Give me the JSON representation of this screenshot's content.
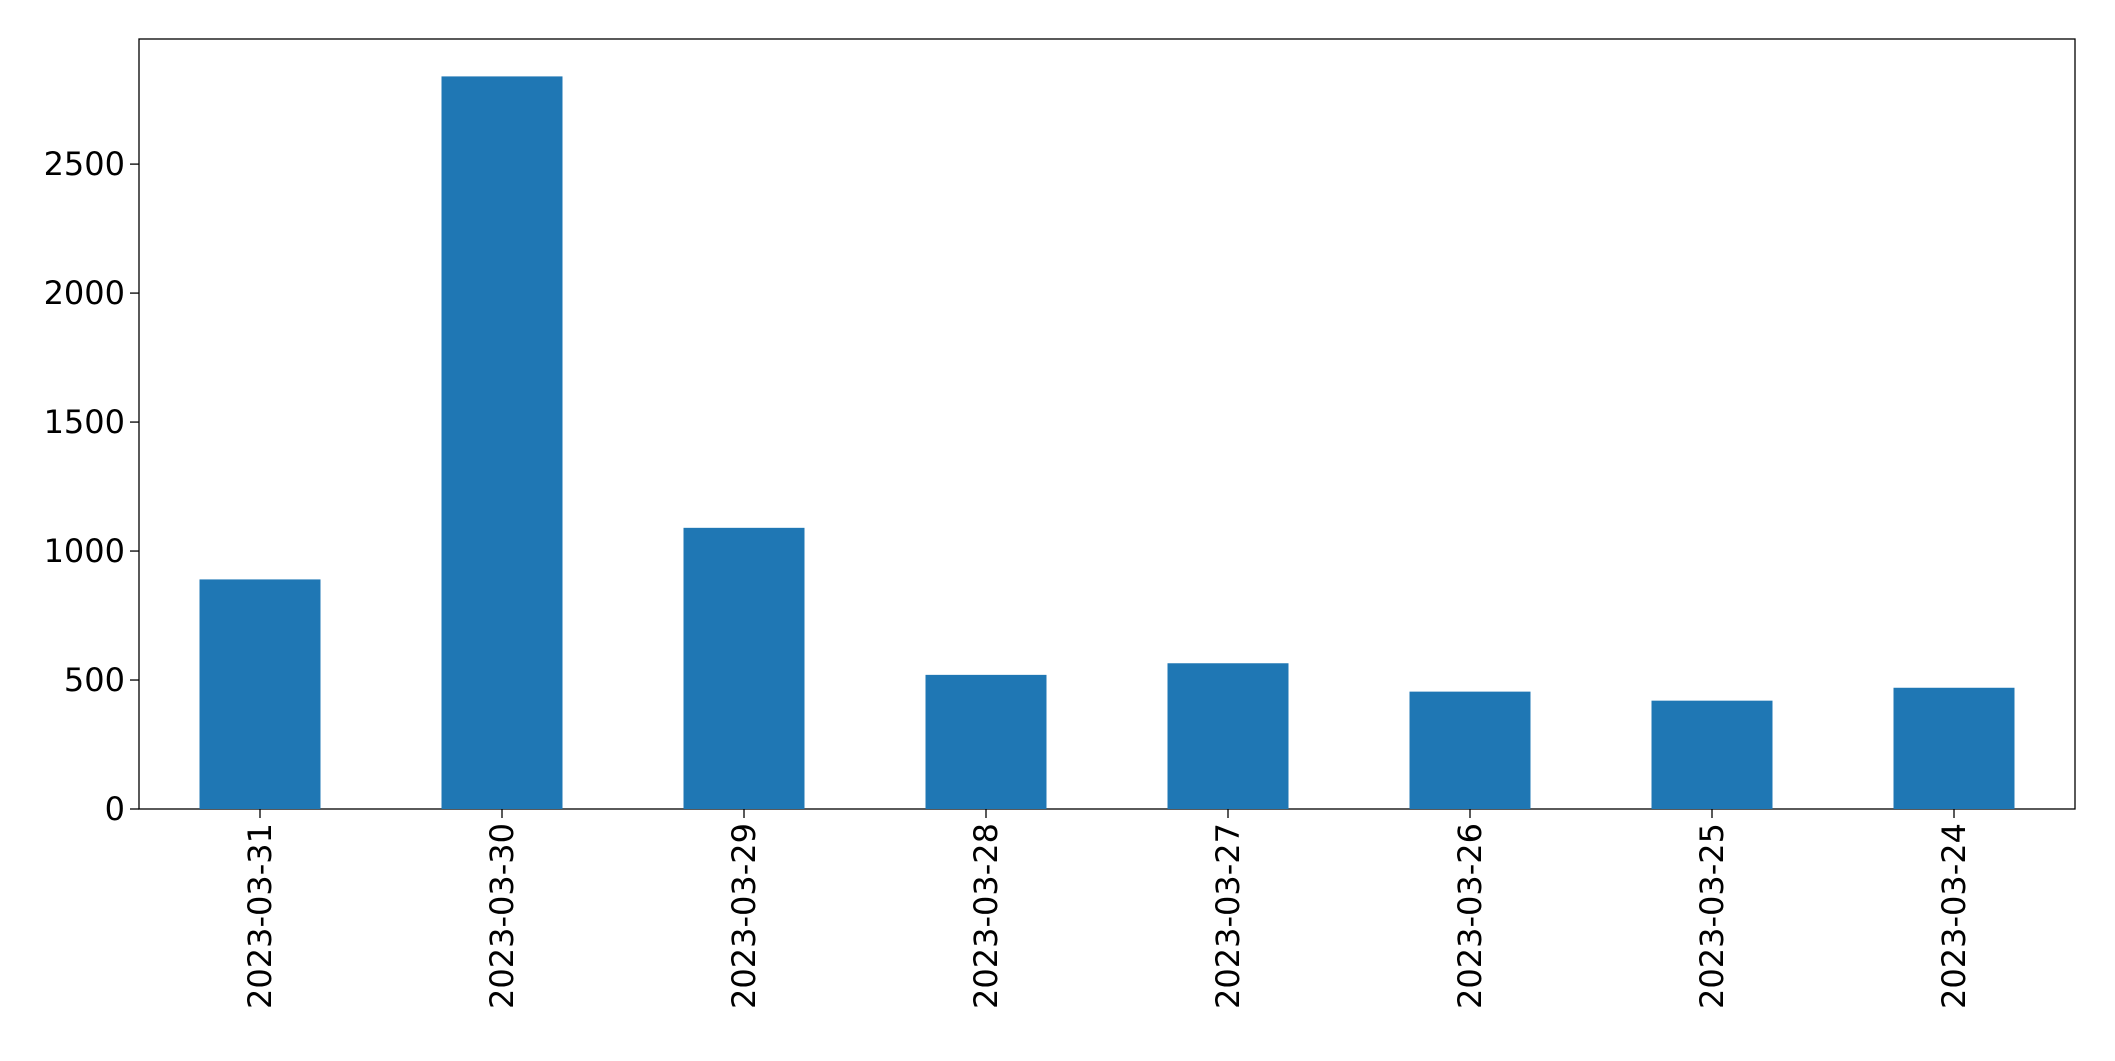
{
  "chart_data": {
    "type": "bar",
    "categories": [
      "2023-03-31",
      "2023-03-30",
      "2023-03-29",
      "2023-03-28",
      "2023-03-27",
      "2023-03-26",
      "2023-03-25",
      "2023-03-24"
    ],
    "values": [
      890,
      2840,
      1090,
      520,
      565,
      455,
      420,
      470
    ],
    "color": "#1f77b4",
    "ylim": [
      0,
      2985
    ],
    "yticks": [
      0,
      500,
      1000,
      1500,
      2000,
      2500
    ],
    "grid": false
  }
}
